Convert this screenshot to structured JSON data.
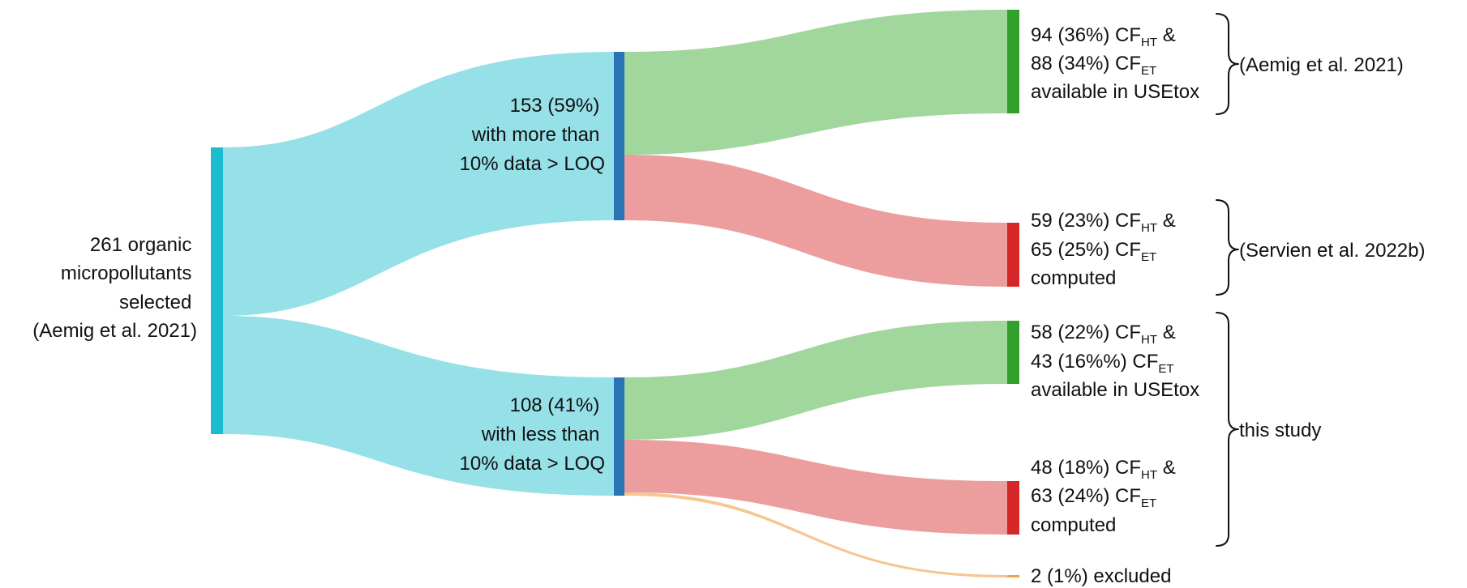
{
  "colors": {
    "source_node": "#1bbccf",
    "source_flow": "#96e0e8",
    "mid_node": "#2a73b5",
    "green_node": "#33a02c",
    "green_flow": "#a1d69c",
    "red_node": "#d62728",
    "red_flow": "#ec9e9e",
    "excluded_flow": "#f6c690",
    "excluded_node": "#f4a050"
  },
  "nodes": {
    "source": {
      "lines": [
        "261 organic",
        "micropollutants",
        "selected",
        "(Aemig et al. 2021)"
      ]
    },
    "more_than": {
      "lines": [
        "153 (59%)",
        "with more than",
        "10% data > LOQ"
      ]
    },
    "less_than": {
      "lines": [
        "108 (41%)",
        "with less than",
        "10% data > LOQ"
      ]
    },
    "t1": {
      "line1": {
        "pre": "94 (36%) CF",
        "sub": "HT",
        "post": " &"
      },
      "line2": {
        "pre": "88 (34%) CF",
        "sub": "ET",
        "post": ""
      },
      "line3": "available in USEtox"
    },
    "t2": {
      "line1": {
        "pre": "59 (23%) CF",
        "sub": "HT",
        "post": " &"
      },
      "line2": {
        "pre": "65 (25%) CF",
        "sub": "ET",
        "post": ""
      },
      "line3": "computed"
    },
    "t3": {
      "line1": {
        "pre": "58 (22%) CF",
        "sub": "HT",
        "post": " &"
      },
      "line2": {
        "pre": "43 (16%%) CF",
        "sub": "ET",
        "post": ""
      },
      "line3": "available in USEtox"
    },
    "t4": {
      "line1": {
        "pre": "48 (18%) CF",
        "sub": "HT",
        "post": " &"
      },
      "line2": {
        "pre": "63 (24%) CF",
        "sub": "ET",
        "post": ""
      },
      "line3": "computed"
    },
    "excluded": {
      "label": "2  (1%) excluded"
    }
  },
  "groups": {
    "aemig": "(Aemig et al. 2021)",
    "servien": "(Servien et al. 2022b)",
    "this_study": "this study"
  }
}
